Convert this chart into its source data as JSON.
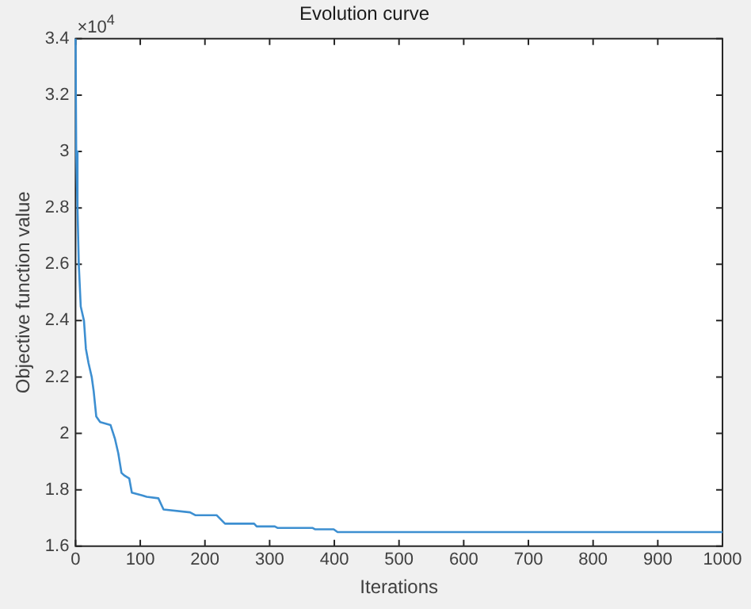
{
  "chart_data": {
    "type": "line",
    "title": "Evolution curve",
    "xlabel": "Iterations",
    "ylabel": "Objective function value",
    "annotations": [
      "×10$^{4}$"
    ],
    "x": [
      0,
      1,
      3,
      5,
      8,
      13,
      16,
      20,
      25,
      28,
      32,
      38,
      54,
      61,
      66,
      71,
      76,
      83,
      87,
      103,
      110,
      128,
      132,
      136,
      177,
      185,
      218,
      231,
      276,
      280,
      308,
      312,
      366,
      370,
      399,
      405,
      1000
    ],
    "series": [
      {
        "color": "#3d8fd1",
        "values": [
          3.4,
          3.0,
          2.8,
          2.6,
          2.45,
          2.4,
          2.3,
          2.25,
          2.2,
          2.15,
          2.06,
          2.04,
          2.03,
          1.98,
          1.93,
          1.86,
          1.85,
          1.84,
          1.79,
          1.78,
          1.775,
          1.77,
          1.75,
          1.73,
          1.72,
          1.71,
          1.71,
          1.68,
          1.68,
          1.67,
          1.67,
          1.665,
          1.665,
          1.66,
          1.66,
          1.65,
          1.65
        ]
      }
    ],
    "xlim": [
      0,
      1000
    ],
    "xticks": [
      0,
      100,
      200,
      300,
      400,
      500,
      600,
      700,
      800,
      900,
      1000
    ],
    "ylim": [
      1.6,
      3.4
    ],
    "yticks": [
      1.6,
      1.8,
      2,
      2.2,
      2.4,
      2.6,
      2.8,
      3,
      3.2,
      3.4
    ],
    "grid": false,
    "legend": false,
    "marker": "none",
    "line_style": "solid"
  }
}
